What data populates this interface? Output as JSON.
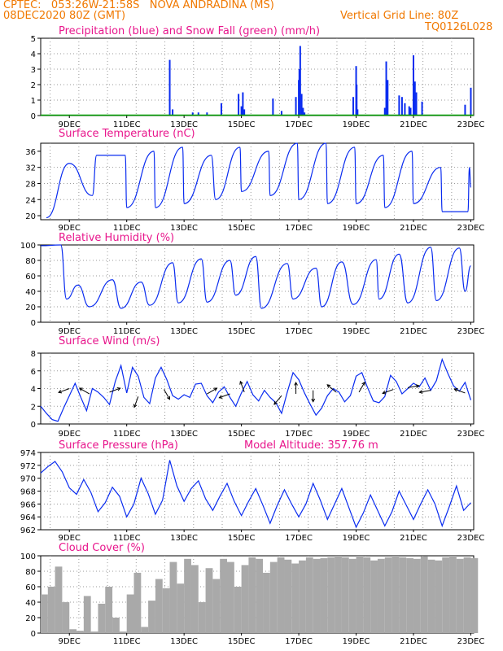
{
  "header": {
    "line1": "CPTEC:   053:26W-21:58S   NOVA ANDRADINA (MS)",
    "line2": "08DEC2020 80Z (GMT)",
    "grid_note": "Vertical Grid Line: 80Z",
    "code": "TQ0126L028"
  },
  "colors": {
    "header": "#f07800",
    "title": "#e8168c",
    "series": "#0a2cf0",
    "snow": "#00a000",
    "cloud": "#a9a9a9",
    "arrow": "#000000"
  },
  "chart_data": [
    {
      "type": "bar",
      "id": "precip",
      "title": "Precipitation (blue) and Snow Fall (green) (mm/h)",
      "ylim": [
        0,
        5
      ],
      "yticks": [
        "0",
        "1",
        "2",
        "3",
        "4",
        "5"
      ],
      "xticks": [
        "9DEC",
        "11DEC",
        "13DEC",
        "15DEC",
        "17DEC",
        "19DEC",
        "21DEC",
        "23DEC"
      ],
      "x_start_day": 8,
      "x_end_day": 23,
      "x": [
        12.5,
        12.6,
        13.3,
        13.5,
        13.8,
        14.3,
        14.9,
        15.0,
        15.05,
        15.1,
        16.1,
        16.4,
        16.9,
        17.0,
        17.02,
        17.05,
        17.1,
        17.15,
        17.2,
        18.9,
        19.0,
        19.02,
        19.05,
        20.0,
        20.05,
        20.1,
        20.5,
        20.6,
        20.7,
        20.85,
        20.9,
        21.0,
        21.05,
        21.1,
        21.3,
        22.8,
        23.0
      ],
      "values": [
        3.6,
        0.4,
        0.2,
        0.2,
        0.2,
        0.8,
        1.4,
        0.6,
        1.5,
        0.4,
        1.1,
        0.3,
        1.2,
        2.3,
        3.0,
        4.5,
        1.4,
        0.5,
        0.2,
        1.2,
        3.2,
        2.0,
        0.4,
        0.5,
        3.5,
        2.3,
        1.3,
        1.2,
        0.8,
        0.6,
        0.5,
        3.9,
        2.2,
        1.5,
        0.9,
        0.7,
        1.8
      ],
      "snow": [
        0,
        0,
        0,
        0,
        0,
        0,
        0,
        0
      ]
    },
    {
      "type": "line",
      "id": "temp",
      "title": "Surface Temperature (nC)",
      "ylim": [
        19,
        38
      ],
      "yticks": [
        "20",
        "24",
        "28",
        "32",
        "36"
      ],
      "xticks": [
        "9DEC",
        "11DEC",
        "13DEC",
        "15DEC",
        "17DEC",
        "19DEC",
        "21DEC",
        "23DEC"
      ],
      "min_day": [
        8.2,
        9.8,
        11.0,
        12.0,
        13.0,
        14.1,
        15.0,
        16.0,
        17.0,
        18.0,
        19.0,
        20.0,
        21.0,
        22.0,
        22.9
      ],
      "min": [
        19.5,
        25,
        22,
        22,
        23,
        24,
        26,
        25,
        24,
        23,
        23,
        22,
        23,
        21,
        21
      ],
      "max_day": [
        9.0,
        9.95,
        10.95,
        11.95,
        12.95,
        13.95,
        14.95,
        15.95,
        16.95,
        17.95,
        18.95,
        19.95,
        20.95,
        21.95,
        22.95
      ],
      "max": [
        33,
        35,
        35,
        36,
        37,
        35,
        37,
        36,
        38,
        38,
        37,
        35,
        36,
        32,
        32
      ],
      "end": [
        23.0,
        27
      ]
    },
    {
      "type": "line",
      "id": "humidity",
      "title": "Relative Humidity (%)",
      "ylim": [
        0,
        100
      ],
      "yticks": [
        "0",
        "20",
        "40",
        "60",
        "80",
        "100"
      ],
      "xticks": [
        "9DEC",
        "11DEC",
        "13DEC",
        "15DEC",
        "17DEC",
        "19DEC",
        "21DEC",
        "23DEC"
      ],
      "peak_day": [
        8.0,
        8.7,
        9.3,
        10.5,
        11.5,
        12.6,
        13.6,
        14.6,
        15.5,
        16.6,
        17.6,
        18.5,
        19.7,
        20.5,
        21.6,
        22.6
      ],
      "peak": [
        99,
        100,
        48,
        55,
        52,
        77,
        82,
        80,
        85,
        76,
        70,
        78,
        81,
        88,
        97,
        96
      ],
      "trough_day": [
        8.9,
        9.7,
        10.8,
        11.8,
        12.8,
        13.8,
        14.8,
        15.7,
        16.8,
        17.8,
        18.9,
        19.8,
        20.8,
        21.8,
        22.8
      ],
      "trough": [
        30,
        20,
        18,
        22,
        25,
        26,
        35,
        18,
        30,
        20,
        23,
        30,
        25,
        28,
        40
      ],
      "end": [
        23.0,
        73
      ]
    },
    {
      "type": "line",
      "id": "wind",
      "title": "Surface Wind (m/s)",
      "ylim": [
        0,
        8
      ],
      "yticks": [
        "0",
        "2",
        "4",
        "6",
        "8"
      ],
      "xticks": [
        "9DEC",
        "11DEC",
        "13DEC",
        "15DEC",
        "17DEC",
        "19DEC",
        "21DEC",
        "23DEC"
      ],
      "x": [
        8.0,
        8.2,
        8.4,
        8.6,
        8.8,
        9.0,
        9.2,
        9.4,
        9.6,
        9.8,
        10.0,
        10.2,
        10.4,
        10.6,
        10.8,
        11.0,
        11.2,
        11.4,
        11.6,
        11.8,
        12.0,
        12.2,
        12.4,
        12.6,
        12.8,
        13.0,
        13.2,
        13.4,
        13.6,
        13.8,
        14.0,
        14.2,
        14.4,
        14.6,
        14.8,
        15.0,
        15.2,
        15.4,
        15.6,
        15.8,
        16.0,
        16.2,
        16.4,
        16.6,
        16.8,
        17.0,
        17.2,
        17.4,
        17.6,
        17.8,
        18.0,
        18.2,
        18.4,
        18.6,
        18.8,
        19.0,
        19.2,
        19.4,
        19.6,
        19.8,
        20.0,
        20.2,
        20.4,
        20.6,
        20.8,
        21.0,
        21.2,
        21.4,
        21.6,
        21.8,
        22.0,
        22.2,
        22.4,
        22.6,
        22.8,
        23.0
      ],
      "values": [
        2.0,
        1.2,
        0.5,
        0.3,
        1.8,
        3.2,
        4.6,
        3.0,
        1.5,
        4.0,
        3.6,
        3.0,
        2.2,
        4.8,
        6.6,
        3.5,
        6.4,
        5.4,
        3.0,
        2.3,
        5.2,
        6.4,
        5.0,
        3.2,
        2.8,
        3.3,
        3.0,
        4.5,
        4.6,
        3.2,
        2.4,
        3.6,
        4.2,
        3.0,
        2.0,
        3.5,
        4.8,
        3.3,
        2.6,
        3.8,
        3.0,
        2.4,
        1.2,
        3.6,
        5.8,
        5.0,
        3.5,
        2.2,
        1.0,
        1.8,
        3.2,
        4.0,
        3.6,
        2.5,
        3.2,
        5.4,
        5.8,
        4.1,
        2.6,
        2.4,
        3.1,
        5.5,
        4.8,
        3.4,
        4.0,
        4.6,
        4.2,
        5.2,
        3.8,
        4.9,
        7.3,
        5.7,
        4.3,
        3.7,
        4.7,
        2.7
      ]
    },
    {
      "type": "line",
      "id": "pressure",
      "title": "Surface Pressure (hPa)",
      "altitude_label": "Model Altitude: 357.76 m",
      "ylim": [
        962,
        974
      ],
      "yticks": [
        "962",
        "964",
        "966",
        "968",
        "970",
        "972",
        "974"
      ],
      "xticks": [
        "9DEC",
        "11DEC",
        "13DEC",
        "15DEC",
        "17DEC",
        "19DEC",
        "21DEC",
        "23DEC"
      ],
      "x": [
        8.0,
        8.25,
        8.5,
        8.75,
        9.0,
        9.25,
        9.5,
        9.75,
        10.0,
        10.25,
        10.5,
        10.75,
        11.0,
        11.25,
        11.5,
        11.75,
        12.0,
        12.25,
        12.5,
        12.75,
        13.0,
        13.25,
        13.5,
        13.75,
        14.0,
        14.25,
        14.5,
        14.75,
        15.0,
        15.25,
        15.5,
        15.75,
        16.0,
        16.25,
        16.5,
        16.75,
        17.0,
        17.25,
        17.5,
        17.75,
        18.0,
        18.25,
        18.5,
        18.75,
        19.0,
        19.25,
        19.5,
        19.75,
        20.0,
        20.25,
        20.5,
        20.75,
        21.0,
        21.25,
        21.5,
        21.75,
        22.0,
        22.25,
        22.5,
        22.75,
        23.0
      ],
      "values": [
        970.8,
        971.8,
        972.6,
        971.0,
        968.5,
        967.5,
        969.8,
        967.8,
        964.8,
        966.2,
        968.6,
        967.2,
        964.0,
        966.0,
        970.0,
        967.6,
        964.4,
        966.6,
        972.8,
        968.8,
        966.4,
        968.4,
        969.6,
        966.8,
        965.0,
        967.2,
        969.2,
        966.4,
        964.2,
        966.4,
        968.4,
        965.8,
        963.0,
        965.8,
        968.2,
        966.0,
        964.0,
        966.0,
        969.2,
        966.6,
        963.6,
        966.0,
        968.4,
        965.4,
        962.4,
        964.6,
        967.4,
        965.0,
        962.6,
        964.8,
        968.0,
        965.8,
        963.6,
        966.0,
        968.2,
        966.0,
        962.6,
        965.6,
        968.8,
        965.0,
        966.2
      ]
    },
    {
      "type": "bar",
      "id": "cloud",
      "title": "Cloud Cover (%)",
      "ylim": [
        0,
        100
      ],
      "yticks": [
        "0",
        "20",
        "40",
        "60",
        "80",
        "100"
      ],
      "xticks": [
        "9DEC",
        "11DEC",
        "13DEC",
        "15DEC",
        "17DEC",
        "19DEC",
        "21DEC",
        "23DEC"
      ],
      "x": [
        8.0,
        8.25,
        8.5,
        8.75,
        9.0,
        9.25,
        9.5,
        9.75,
        10.0,
        10.25,
        10.5,
        10.75,
        11.0,
        11.25,
        11.5,
        11.75,
        12.0,
        12.25,
        12.5,
        12.75,
        13.0,
        13.25,
        13.5,
        13.75,
        14.0,
        14.25,
        14.5,
        14.75,
        15.0,
        15.25,
        15.5,
        15.75,
        16.0,
        16.25,
        16.5,
        16.75,
        17.0,
        17.25,
        17.5,
        17.75,
        18.0,
        18.25,
        18.5,
        18.75,
        19.0,
        19.25,
        19.5,
        19.75,
        20.0,
        20.25,
        20.5,
        20.75,
        21.0,
        21.25,
        21.5,
        21.75,
        22.0,
        22.25,
        22.5,
        22.75,
        23.0
      ],
      "values": [
        50,
        60,
        86,
        40,
        5,
        3,
        48,
        2,
        38,
        60,
        20,
        2,
        50,
        78,
        8,
        42,
        70,
        58,
        92,
        64,
        96,
        88,
        40,
        84,
        70,
        96,
        92,
        60,
        88,
        98,
        96,
        78,
        92,
        98,
        95,
        90,
        94,
        98,
        96,
        97,
        98,
        100,
        98,
        96,
        100,
        98,
        94,
        96,
        98,
        100,
        98,
        97,
        96,
        99,
        95,
        94,
        98,
        100,
        96,
        98,
        97
      ]
    }
  ]
}
